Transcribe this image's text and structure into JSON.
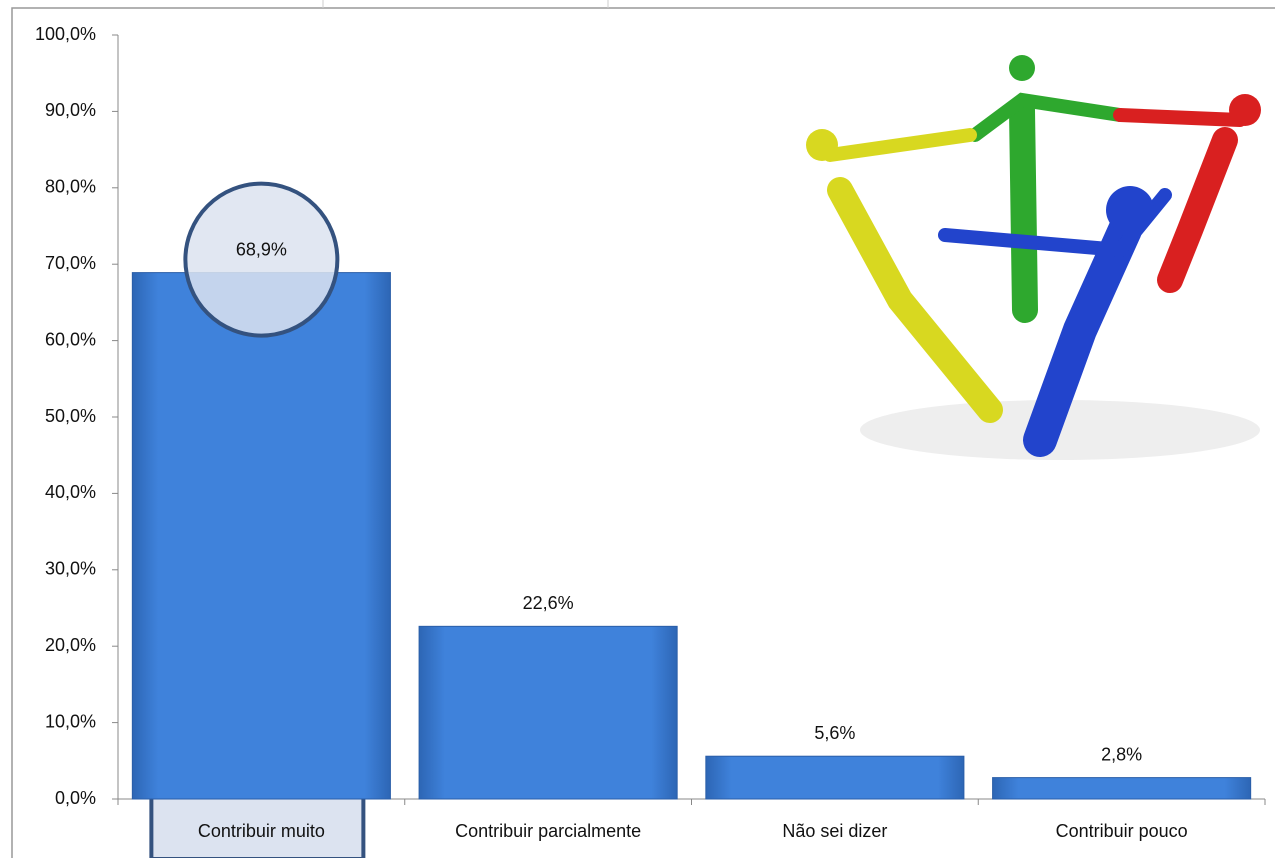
{
  "chart_data": {
    "type": "bar",
    "categories": [
      "Contribuir muito",
      "Contribuir parcialmente",
      "Não sei dizer",
      "Contribuir pouco"
    ],
    "values": [
      68.9,
      22.6,
      5.6,
      2.8
    ],
    "value_labels": [
      "68,9%",
      "22,6%",
      "5,6%",
      "2,8%"
    ],
    "color": "#3b7dd3",
    "ylim": [
      0,
      100
    ],
    "yticks": [
      {
        "value": 0,
        "label": "0,0%"
      },
      {
        "value": 10,
        "label": "10,0%"
      },
      {
        "value": 20,
        "label": "20,0%"
      },
      {
        "value": 30,
        "label": "30,0%"
      },
      {
        "value": 40,
        "label": "40,0%"
      },
      {
        "value": 50,
        "label": "50,0%"
      },
      {
        "value": 60,
        "label": "60,0%"
      },
      {
        "value": 70,
        "label": "70,0%"
      },
      {
        "value": 80,
        "label": "80,0%"
      },
      {
        "value": 90,
        "label": "90,0%"
      },
      {
        "value": 100,
        "label": "100,0%"
      }
    ],
    "grid": false
  }
}
